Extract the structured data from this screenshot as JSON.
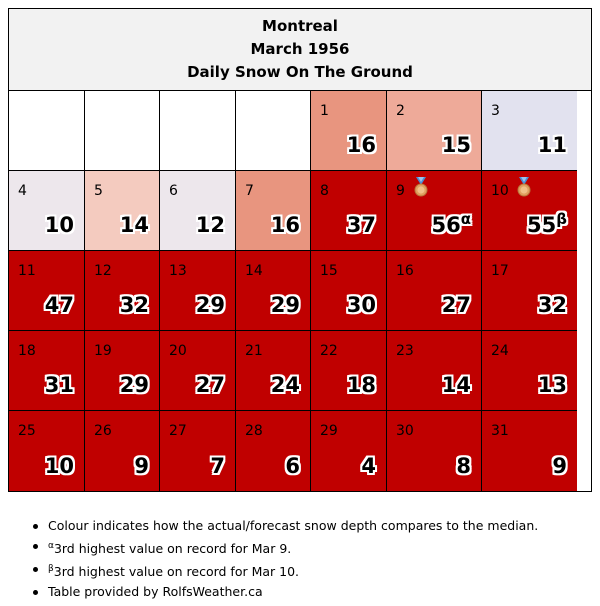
{
  "header": {
    "city": "Montreal",
    "month": "March 1956",
    "subtitle": "Daily Snow On The Ground"
  },
  "colors": {
    "record": "#c00000",
    "above_high": "#e8957f",
    "above_mid": "#eeaa99",
    "above_low": "#f4cbbf",
    "near_median": "#ede7ec",
    "below": "#e2e2ef",
    "empty": "#ffffff"
  },
  "days": [
    {
      "day": "",
      "value": "",
      "color": "empty"
    },
    {
      "day": "",
      "value": "",
      "color": "empty"
    },
    {
      "day": "",
      "value": "",
      "color": "empty"
    },
    {
      "day": "",
      "value": "",
      "color": "empty"
    },
    {
      "day": "1",
      "value": "16",
      "color": "above_high"
    },
    {
      "day": "2",
      "value": "15",
      "color": "above_mid"
    },
    {
      "day": "3",
      "value": "11",
      "color": "below"
    },
    {
      "day": "4",
      "value": "10",
      "color": "near_median"
    },
    {
      "day": "5",
      "value": "14",
      "color": "above_low"
    },
    {
      "day": "6",
      "value": "12",
      "color": "near_median"
    },
    {
      "day": "7",
      "value": "16",
      "color": "above_high"
    },
    {
      "day": "8",
      "value": "37",
      "color": "record"
    },
    {
      "day": "9",
      "value": "56",
      "sup": "α",
      "color": "record",
      "medal": "bronze-medal-icon"
    },
    {
      "day": "10",
      "value": "55",
      "sup": "β",
      "color": "record",
      "medal": "bronze-medal-icon"
    },
    {
      "day": "11",
      "value": "47",
      "color": "record"
    },
    {
      "day": "12",
      "value": "32",
      "color": "record"
    },
    {
      "day": "13",
      "value": "29",
      "color": "record"
    },
    {
      "day": "14",
      "value": "29",
      "color": "record"
    },
    {
      "day": "15",
      "value": "30",
      "color": "record"
    },
    {
      "day": "16",
      "value": "27",
      "color": "record"
    },
    {
      "day": "17",
      "value": "32",
      "color": "record"
    },
    {
      "day": "18",
      "value": "31",
      "color": "record"
    },
    {
      "day": "19",
      "value": "29",
      "color": "record"
    },
    {
      "day": "20",
      "value": "27",
      "color": "record"
    },
    {
      "day": "21",
      "value": "24",
      "color": "record"
    },
    {
      "day": "22",
      "value": "18",
      "color": "record"
    },
    {
      "day": "23",
      "value": "14",
      "color": "record"
    },
    {
      "day": "24",
      "value": "13",
      "color": "record"
    },
    {
      "day": "25",
      "value": "10",
      "color": "record"
    },
    {
      "day": "26",
      "value": "9",
      "color": "record"
    },
    {
      "day": "27",
      "value": "7",
      "color": "record"
    },
    {
      "day": "28",
      "value": "6",
      "color": "record"
    },
    {
      "day": "29",
      "value": "4",
      "color": "record"
    },
    {
      "day": "30",
      "value": "8",
      "color": "record"
    },
    {
      "day": "31",
      "value": "9",
      "color": "record"
    }
  ],
  "notes": {
    "colour": "Colour indicates how the actual/forecast snow depth compares to the median.",
    "alpha_mark": "α",
    "alpha_text": "3rd highest value on record for Mar 9.",
    "beta_mark": "β",
    "beta_text": "3rd highest value on record for Mar 10.",
    "credit": "Table provided by RolfsWeather.ca"
  }
}
